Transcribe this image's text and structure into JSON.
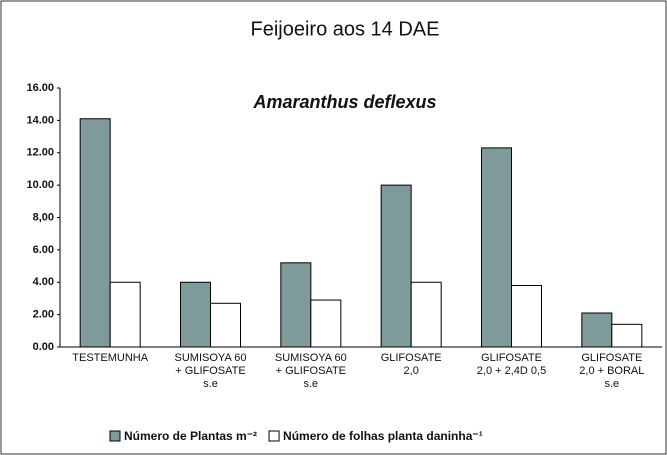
{
  "chart_data": {
    "type": "bar",
    "title": "Feijoeiro aos 14 DAE",
    "subtitle": "Amaranthus deflexus",
    "categories": [
      [
        "TESTEMUNHA"
      ],
      [
        "SUMISOYA 60",
        "+ GLIFOSATE",
        "s.e"
      ],
      [
        "SUMISOYA 60",
        "+ GLIFOSATE",
        "s.e"
      ],
      [
        "GLIFOSATE",
        "2,0"
      ],
      [
        "GLIFOSATE",
        "2,0 + 2,4D 0,5"
      ],
      [
        "GLIFOSATE",
        "2,0 + BORAL",
        "s.e"
      ]
    ],
    "series": [
      {
        "name": "Número de Plantas m⁻²",
        "color": "#7f9a9a",
        "values": [
          14.1,
          4.0,
          5.2,
          10.0,
          12.3,
          2.1
        ]
      },
      {
        "name": "Número de folhas planta daninha⁻¹",
        "color": "#ffffff",
        "values": [
          4.0,
          2.7,
          2.9,
          4.0,
          3.8,
          1.4
        ]
      }
    ],
    "ylim": [
      0,
      16
    ],
    "yticks": [
      {
        "value": 0,
        "label": "0.00"
      },
      {
        "value": 2,
        "label": "2.00"
      },
      {
        "value": 4,
        "label": "4.00"
      },
      {
        "value": 6,
        "label": "6.00"
      },
      {
        "value": 8,
        "label": "8,00"
      },
      {
        "value": 10,
        "label": "10.00"
      },
      {
        "value": 12,
        "label": "12.00"
      },
      {
        "value": 14,
        "label": "14.00"
      },
      {
        "value": 16,
        "label": "16.00"
      }
    ]
  }
}
